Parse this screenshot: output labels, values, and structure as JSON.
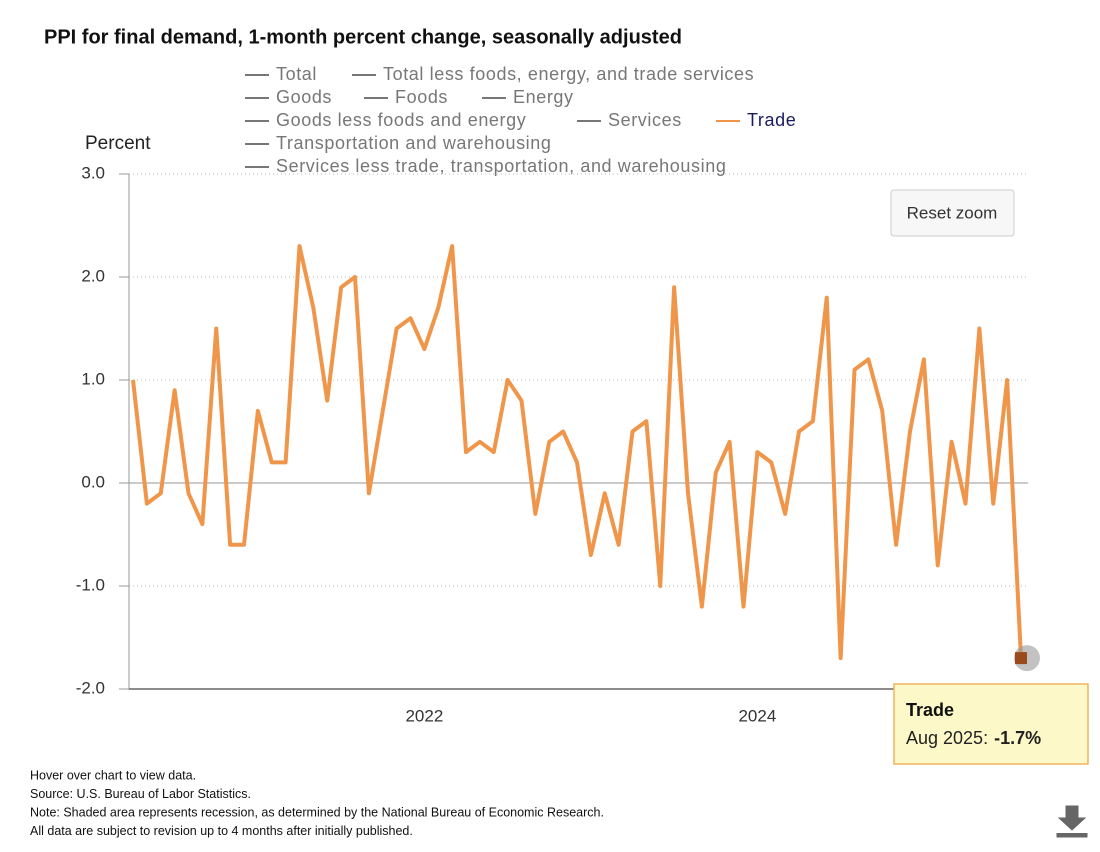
{
  "chart_data": {
    "type": "line",
    "title": "PPI for final demand, 1-month percent change, seasonally adjusted",
    "y_label": "Percent",
    "x": [
      "Apr 2020",
      "May 2020",
      "Jun 2020",
      "Jul 2020",
      "Aug 2020",
      "Sep 2020",
      "Oct 2020",
      "Nov 2020",
      "Dec 2020",
      "Jan 2021",
      "Feb 2021",
      "Mar 2021",
      "Apr 2021",
      "May 2021",
      "Jun 2021",
      "Jul 2021",
      "Aug 2021",
      "Sep 2021",
      "Oct 2021",
      "Nov 2021",
      "Dec 2021",
      "Jan 2022",
      "Feb 2022",
      "Mar 2022",
      "Apr 2022",
      "May 2022",
      "Jun 2022",
      "Jul 2022",
      "Aug 2022",
      "Sep 2022",
      "Oct 2022",
      "Nov 2022",
      "Dec 2022",
      "Jan 2023",
      "Feb 2023",
      "Mar 2023",
      "Apr 2023",
      "May 2023",
      "Jun 2023",
      "Jul 2023",
      "Aug 2023",
      "Sep 2023",
      "Oct 2023",
      "Nov 2023",
      "Dec 2023",
      "Jan 2024",
      "Feb 2024",
      "Mar 2024",
      "Apr 2024",
      "May 2024",
      "Jun 2024",
      "Jul 2024",
      "Aug 2024",
      "Sep 2024",
      "Oct 2024",
      "Nov 2024",
      "Dec 2024",
      "Jan 2025",
      "Feb 2025",
      "Mar 2025",
      "Apr 2025",
      "May 2025",
      "Jun 2025",
      "Jul 2025",
      "Aug 2025"
    ],
    "series": [
      {
        "name": "Total",
        "visible": false
      },
      {
        "name": "Total less foods, energy, and trade services",
        "visible": false
      },
      {
        "name": "Goods",
        "visible": false
      },
      {
        "name": "Foods",
        "visible": false
      },
      {
        "name": "Energy",
        "visible": false
      },
      {
        "name": "Goods less foods and energy",
        "visible": false
      },
      {
        "name": "Services",
        "visible": false
      },
      {
        "name": "Trade",
        "visible": true,
        "color": "#f0964a",
        "values": [
          1.0,
          -0.2,
          -0.1,
          0.9,
          -0.1,
          -0.4,
          1.5,
          -0.6,
          -0.6,
          0.7,
          0.2,
          0.2,
          2.3,
          1.7,
          0.8,
          1.9,
          2.0,
          -0.1,
          0.7,
          1.5,
          1.6,
          1.3,
          1.7,
          2.3,
          0.3,
          0.4,
          0.3,
          1.0,
          0.8,
          -0.3,
          0.4,
          0.5,
          0.2,
          -0.7,
          -0.1,
          -0.6,
          0.5,
          0.6,
          -1.0,
          1.9,
          -0.1,
          -1.2,
          0.1,
          0.4,
          -1.2,
          0.3,
          0.2,
          -0.3,
          0.5,
          0.6,
          1.8,
          -1.7,
          1.1,
          1.2,
          0.7,
          -0.6,
          0.5,
          1.2,
          -0.8,
          0.4,
          -0.2,
          1.5,
          -0.2,
          1.0,
          -1.7
        ]
      },
      {
        "name": "Transportation and warehousing",
        "visible": false
      },
      {
        "name": "Services less trade, transportation, and warehousing",
        "visible": false
      }
    ],
    "xlim": [
      "Apr 2020",
      "Aug 2025"
    ],
    "xticks": [
      {
        "value": "Jan 2022",
        "label": "2022"
      },
      {
        "value": "Jan 2024",
        "label": "2024"
      }
    ],
    "ylim": [
      -2,
      3
    ],
    "yticks": [
      {
        "value": -2,
        "label": "-2.0"
      },
      {
        "value": -1,
        "label": "-1.0"
      },
      {
        "value": 0,
        "label": "0.0"
      },
      {
        "value": 1,
        "label": "1.0"
      },
      {
        "value": 2,
        "label": "2.0"
      },
      {
        "value": 3,
        "label": "3.0"
      }
    ],
    "grid": true,
    "button": "Reset zoom",
    "tooltip": {
      "label": "Aug 2025:",
      "value": -1.7,
      "value_label": "-1.7%"
    },
    "notes": [
      "Hover over chart to view data.",
      "Source: U.S. Bureau of Labor Statistics.",
      "Note: Shaded area represents recession, as determined by the National Bureau of Economic Research.",
      "All data are subject to revision up to 4 months after initially published."
    ]
  }
}
